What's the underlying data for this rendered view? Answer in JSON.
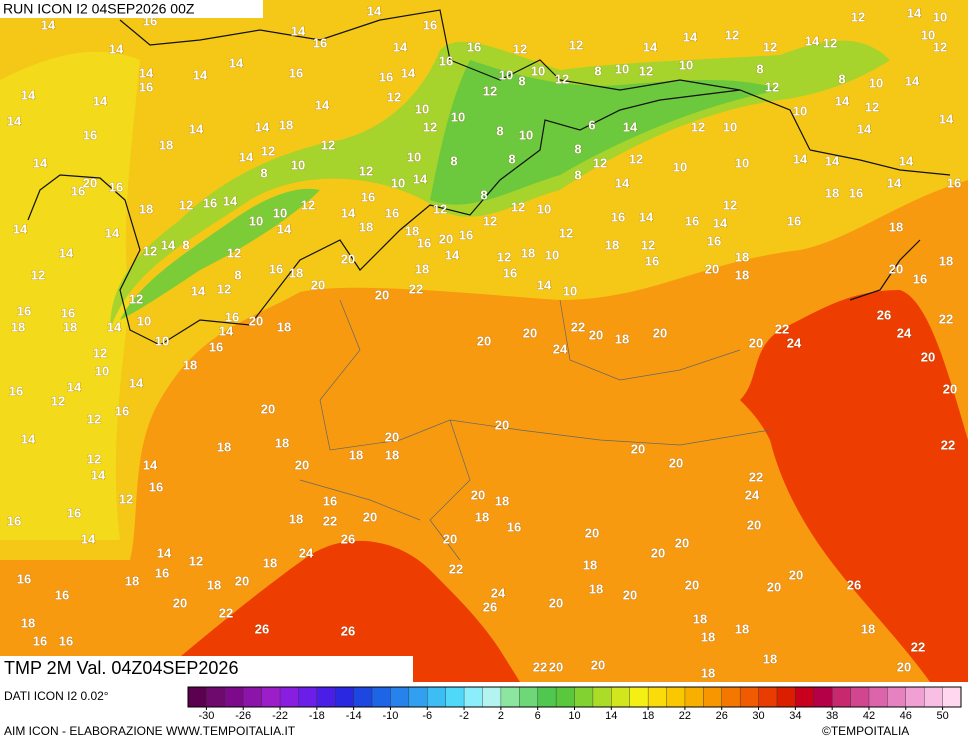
{
  "header": {
    "title": "RUN ICON I2 04SEP2026 00Z"
  },
  "map": {
    "labels": [
      14,
      16,
      14,
      16,
      14,
      16,
      16,
      12,
      12,
      14,
      14,
      12,
      12,
      14,
      12,
      12,
      14,
      10,
      10,
      12,
      14,
      14,
      14,
      16,
      14,
      14,
      16,
      16,
      14,
      12,
      16,
      10,
      8,
      10,
      12,
      8,
      10,
      12,
      10,
      8,
      12,
      8,
      10,
      14,
      14,
      14,
      10,
      10,
      12,
      10,
      14,
      12,
      14,
      14,
      14,
      16,
      14,
      14,
      18,
      12,
      8,
      10,
      6,
      14,
      12,
      10,
      14,
      18,
      12,
      14,
      12,
      10,
      8,
      8,
      8,
      12,
      12,
      10,
      10,
      14,
      14,
      14,
      14,
      8,
      10,
      12,
      16,
      20,
      16,
      10,
      14,
      8,
      14,
      18,
      16,
      14,
      16,
      18,
      12,
      16,
      14,
      16,
      8,
      12,
      10,
      10,
      12,
      14,
      16,
      12,
      12,
      12,
      16,
      14,
      14,
      10,
      14,
      18,
      12,
      16,
      14,
      16,
      14,
      18,
      14,
      8,
      12,
      12,
      18,
      16,
      20,
      16,
      16,
      18,
      18,
      12,
      14,
      20,
      14,
      12,
      10,
      16,
      18,
      16,
      18,
      8,
      18,
      16,
      20,
      18,
      20,
      16,
      18,
      14,
      12,
      20,
      20,
      22,
      14,
      10,
      12,
      12,
      16,
      18,
      16,
      14,
      10,
      10,
      16,
      20,
      18,
      14,
      16,
      22,
      20,
      24,
      20,
      18,
      20,
      20,
      26,
      22,
      24,
      20,
      22,
      24,
      18,
      12,
      10,
      18,
      14,
      16,
      14,
      12,
      20,
      16,
      12,
      20,
      20,
      20,
      14,
      18,
      18,
      20,
      18,
      18,
      20,
      14,
      12,
      14,
      20,
      20,
      22,
      16,
      12,
      16,
      20,
      18,
      22,
      24,
      16,
      16,
      18,
      22,
      20,
      18,
      16,
      20,
      14,
      20,
      20,
      20,
      14,
      12,
      24,
      26,
      20,
      16,
      18,
      16,
      18,
      20,
      18,
      22,
      18,
      20,
      16,
      20,
      26,
      24,
      20,
      18,
      20,
      20,
      20,
      26,
      22,
      18,
      16,
      16,
      26,
      26,
      18,
      18,
      18,
      18,
      22,
      22,
      20,
      20,
      18,
      18,
      20
    ]
  },
  "footer": {
    "valid": "TMP 2M Val. 04Z04SEP2026",
    "source": "DATI ICON I2 0.02°",
    "credit": "AIM ICON - ELABORAZIONE WWW.TEMPOITALIA.IT",
    "copyright": "©TEMPOITALIA"
  },
  "colorbar": {
    "range": [
      -32,
      52
    ],
    "colors": [
      "#5c0050",
      "#6e0a6e",
      "#7d0a8a",
      "#8c14a8",
      "#9b1ec8",
      "#8a1ee0",
      "#6a1ee8",
      "#4b1ee8",
      "#2a28e0",
      "#1e46e0",
      "#1e64e6",
      "#2882ec",
      "#32a0f0",
      "#3cbef4",
      "#50d8f8",
      "#8ceefa",
      "#b4f4f0",
      "#8ce6a0",
      "#6ed878",
      "#50c850",
      "#5ac83c",
      "#82d232",
      "#aadc28",
      "#d2e61e",
      "#f5f014",
      "#fadc0a",
      "#fac800",
      "#f8b000",
      "#f89600",
      "#f47800",
      "#f05a00",
      "#e83c00",
      "#dc1e00",
      "#c8001e",
      "#b40046",
      "#c8286e",
      "#d24690",
      "#dc64aa",
      "#e682c0",
      "#f0a0d2",
      "#f8bee4",
      "#ffd8f0"
    ],
    "ticks": [
      -30,
      -26,
      -22,
      -18,
      -14,
      -10,
      -6,
      -2,
      2,
      6,
      10,
      14,
      18,
      22,
      26,
      30,
      34,
      38,
      42,
      46,
      50
    ]
  }
}
